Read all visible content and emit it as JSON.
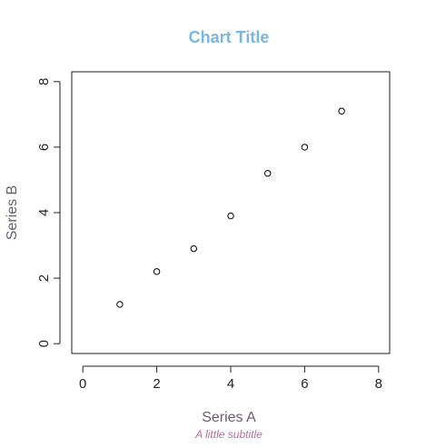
{
  "chart_data": {
    "type": "scatter",
    "title": "Chart Title",
    "subtitle": "A little subtitle",
    "xlabel": "Series A",
    "ylabel": "Series B",
    "xlim": [
      -0.3,
      8.3
    ],
    "ylim": [
      -0.3,
      8.3
    ],
    "x_ticks": [
      0,
      2,
      4,
      6,
      8
    ],
    "y_ticks": [
      0,
      2,
      4,
      6,
      8
    ],
    "x_tick_labels": [
      "0",
      "2",
      "4",
      "6",
      "8"
    ],
    "y_tick_labels": [
      "0",
      "2",
      "4",
      "6",
      "8"
    ],
    "grid": false,
    "legend": "none",
    "series": [
      {
        "x": [
          1,
          2,
          3,
          4,
          5,
          6,
          7
        ],
        "y": [
          1.2,
          2.2,
          2.9,
          3.9,
          5.2,
          6.0,
          7.1
        ]
      }
    ],
    "colors": {
      "title": "#7ab6e3",
      "axis_label": "#6b5a72",
      "subtitle": "#b56e9d",
      "axis": "#222222",
      "tick_label": "#222222",
      "point_stroke": "#000000",
      "point_fill": "#ffffff",
      "plot_border": "#222222"
    }
  }
}
